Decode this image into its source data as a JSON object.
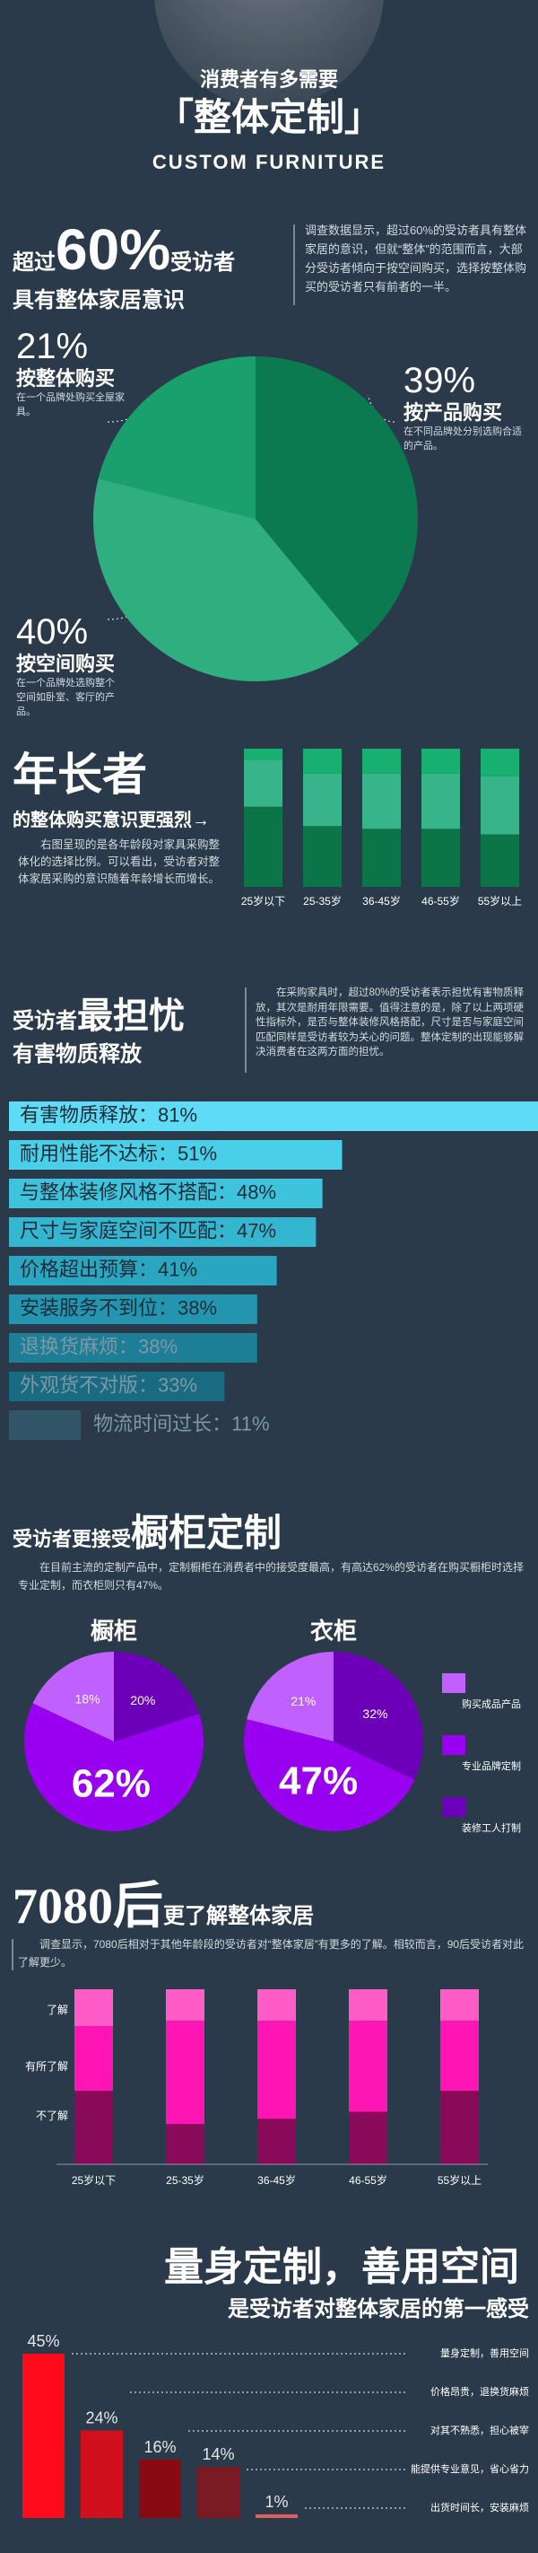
{
  "header": {
    "title": "消费者有多需要",
    "main_title": "「整体定制」",
    "subtitle": "CUSTOM FURNITURE"
  },
  "chart_data": [
    {
      "type": "pie",
      "headline_prefix": "超过",
      "headline_number": "60%",
      "headline_suffix": "受访者",
      "subtitle": "具有整体家居意识",
      "description": "调查数据显示，超过60%的受访者具有整体家居的意识，但就“整体”的范围而言，大部分受访者倾向于按空间购买，选择按整体购买的受访者只有前者的一半。",
      "categories": [
        "按整体购买",
        "按空间购买",
        "按产品购买"
      ],
      "values": [
        21,
        40,
        39
      ],
      "value_labels": [
        "21%",
        "40%",
        "39%"
      ],
      "descriptions": [
        "在一个品牌处购买全屋家具。",
        "在一个品牌处选购整个空间如卧室、客厅的产品。",
        "在不同品牌处分别选购合适的产品。"
      ],
      "colors": [
        "#1aa06c",
        "#2fae80",
        "#0c7a50"
      ],
      "direction": "counterclockwise"
    },
    {
      "type": "bar",
      "stacked": true,
      "title": "年长者",
      "subtitle": "的整体购买意识更强烈→",
      "description": "右图呈现的是各年龄段对家具采购整体化的选择比例。可以看出，受访者对整体家居采购的意识随着年龄增长而增长。",
      "categories": [
        "25岁以下",
        "25-35岁",
        "36-45岁",
        "46-55岁",
        "55岁以上"
      ],
      "series": [
        {
          "color": "#0b7548",
          "values": [
            58,
            44,
            42,
            42,
            38
          ]
        },
        {
          "color": "#37b489",
          "values": [
            34,
            38,
            40,
            40,
            42
          ]
        },
        {
          "color": "#18b070",
          "values": [
            8,
            18,
            18,
            18,
            20
          ]
        }
      ]
    },
    {
      "type": "barh",
      "title_prefix": "受访者",
      "title": "最担忧",
      "subtitle": "有害物质释放",
      "description": "在采购家具时，超过80%的受访者表示担忧有害物质释放，其次是耐用年限需要。值得注意的是，除了以上两项硬性指标外，是否与整体装修风格搭配，尺寸是否与家庭空间匹配同样是受访者较为关心的问题。整体定制的出现能够解决消费者在这两方面的担忧。",
      "values": [
        81,
        51,
        48,
        47,
        41,
        38,
        38,
        33,
        11
      ],
      "value_labels": [
        "有害物质释放：81%",
        "耐用性能不达标：51%",
        "与整体装修风格不搭配：48%",
        "尺寸与家庭空间不匹配：47%",
        "价格超出预算：41%",
        "安装服务不到位：38%",
        "退换货麻烦：38%",
        "外观货不对版：33%",
        "物流时间过长：11%"
      ],
      "colors": [
        "#5fdcf5",
        "#49cfe8",
        "#3ec3dc",
        "#35b6d0",
        "#2ba6c0",
        "#2395ae",
        "#1c7f96",
        "#186b80",
        "#2f5566"
      ]
    },
    {
      "type": "pie",
      "title_prefix": "受访者更接受",
      "title": "橱柜定制",
      "description": "在目前主流的定制产品中，定制橱柜在消费者中的接受度最高，有高达62%的受访者在购买橱柜时选择专业定制，而衣柜则只有47%。",
      "categories": [
        "购买成品产品",
        "专业品牌定制",
        "装修工人打制"
      ],
      "colors": [
        "#c060ff",
        "#9a00f0",
        "#6c00b8"
      ],
      "direction": "counterclockwise",
      "pies": [
        {
          "title": "橱柜",
          "values": [
            18,
            62,
            20
          ],
          "value_labels": [
            "18%",
            "62%",
            "20%"
          ]
        },
        {
          "title": "衣柜",
          "values": [
            21,
            47,
            32
          ],
          "value_labels": [
            "21%",
            "47%",
            "32%"
          ]
        }
      ]
    },
    {
      "type": "bar",
      "stacked": true,
      "title": "7080后",
      "subtitle": "更了解整体家居",
      "description": "调查显示，7080后相对于其他年龄段的受访者对“整体家居”有更多的了解。相较而言，90后受访者对此了解更少。",
      "categories": [
        "25岁以下",
        "25-35岁",
        "36-45岁",
        "46-55岁",
        "55岁以上"
      ],
      "series": [
        {
          "name": "不了解",
          "color": "#8a0a5a",
          "values": [
            42,
            23,
            26,
            30,
            42
          ]
        },
        {
          "name": "有所了解",
          "color": "#ff14b4",
          "values": [
            37,
            59,
            56,
            52,
            40
          ]
        },
        {
          "name": "了解",
          "color": "#ff5cc8",
          "values": [
            21,
            18,
            18,
            18,
            18
          ]
        }
      ]
    },
    {
      "type": "bar",
      "title": "量身定制，善用空间",
      "subtitle": "是受访者对整体家居的第一感受",
      "categories": [
        "量身定制，善用空间",
        "价格昂贵，退换货麻烦",
        "对其不熟悉，担心被宰",
        "能提供专业意见，省心省力",
        "出货时间长，安装麻烦"
      ],
      "values": [
        45,
        24,
        16,
        14,
        1
      ],
      "value_labels": [
        "45%",
        "24%",
        "16%",
        "14%",
        "1%"
      ],
      "colors": [
        "#ff0a1a",
        "#d0101c",
        "#8a0a14",
        "#7a1a22",
        "#e06060"
      ]
    }
  ]
}
